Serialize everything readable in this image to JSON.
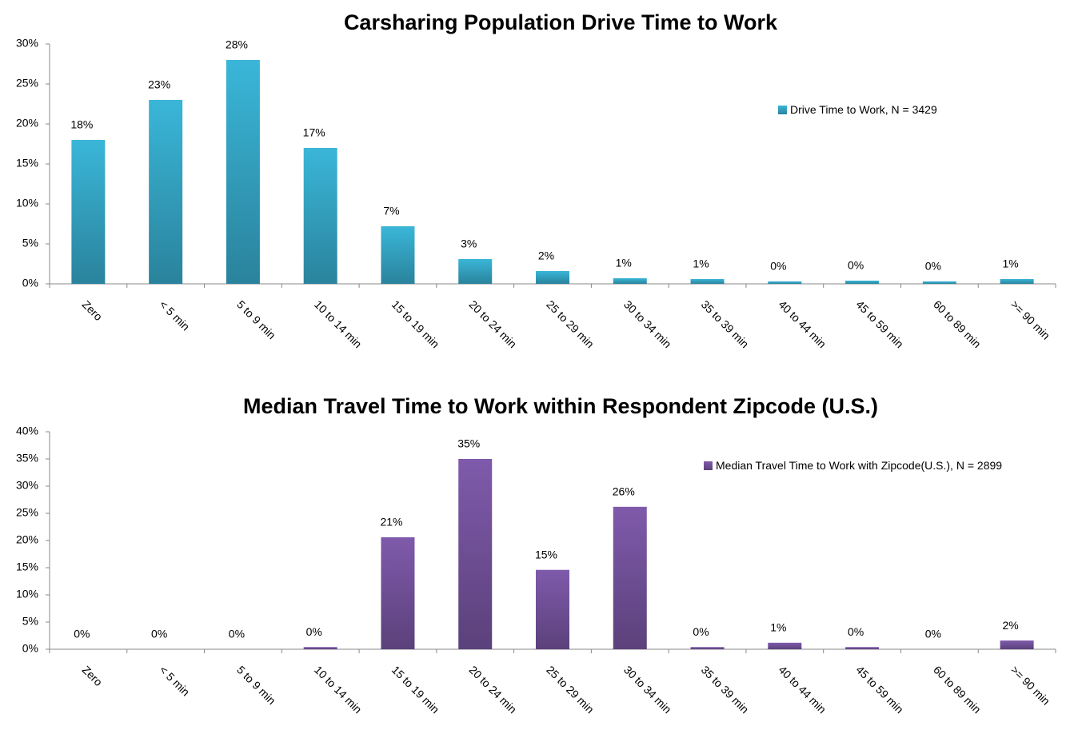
{
  "chart_data": [
    {
      "type": "bar",
      "title": "Carsharing Population Drive Time to Work",
      "categories": [
        "Zero",
        "< 5 min",
        "5 to 9 min",
        "10 to 14 min",
        "15 to 19 min",
        "20 to 24 min",
        "25 to 29 min",
        "30 to 34 min",
        "35 to 39 min",
        "40 to 44 min",
        "45 to 59 min",
        "60 to 89 min",
        ">= 90 min"
      ],
      "series": [
        {
          "name": "Drive Time to Work, N = 3429",
          "color": "#3ab6d8",
          "values": [
            18,
            23,
            28,
            17,
            7.2,
            3.1,
            1.6,
            0.7,
            0.6,
            0.3,
            0.4,
            0.3,
            0.6
          ],
          "value_labels": [
            "18%",
            "23%",
            "28%",
            "17%",
            "7%",
            "3%",
            "2%",
            "1%",
            "1%",
            "0%",
            "0%",
            "0%",
            "1%"
          ]
        }
      ],
      "ylim": [
        0,
        30
      ],
      "yticks": [
        {
          "value": 0,
          "label": "0%"
        },
        {
          "value": 5,
          "label": "5%"
        },
        {
          "value": 10,
          "label": "10%"
        },
        {
          "value": 15,
          "label": "15%"
        },
        {
          "value": 20,
          "label": "20%"
        },
        {
          "value": 25,
          "label": "25%"
        },
        {
          "value": 30,
          "label": "30%"
        }
      ],
      "legend": "right"
    },
    {
      "type": "bar",
      "title": "Median Travel Time to Work within Respondent Zipcode (U.S.)",
      "categories": [
        "Zero",
        "< 5 min",
        "5 to 9 min",
        "10 to 14 min",
        "15 to 19 min",
        "20 to 24 min",
        "25 to 29 min",
        "30 to 34 min",
        "35 to 39 min",
        "40 to 44 min",
        "45 to 59 min",
        "60 to 89 min",
        ">= 90 min"
      ],
      "series": [
        {
          "name": "Median Travel Time to Work with Zipcode(U.S.), N = 2899",
          "color": "#7f5aab",
          "values": [
            0,
            0,
            0,
            0.4,
            20.6,
            35,
            14.6,
            26.2,
            0.4,
            1.2,
            0.4,
            0,
            1.6
          ],
          "value_labels": [
            "0%",
            "0%",
            "0%",
            "0%",
            "21%",
            "35%",
            "15%",
            "26%",
            "0%",
            "1%",
            "0%",
            "0%",
            "2%"
          ]
        }
      ],
      "ylim": [
        0,
        40
      ],
      "yticks": [
        {
          "value": 0,
          "label": "0%"
        },
        {
          "value": 5,
          "label": "5%"
        },
        {
          "value": 10,
          "label": "10%"
        },
        {
          "value": 15,
          "label": "15%"
        },
        {
          "value": 20,
          "label": "20%"
        },
        {
          "value": 25,
          "label": "25%"
        },
        {
          "value": 30,
          "label": "30%"
        },
        {
          "value": 35,
          "label": "35%"
        },
        {
          "value": 40,
          "label": "40%"
        }
      ],
      "legend": "right"
    }
  ]
}
